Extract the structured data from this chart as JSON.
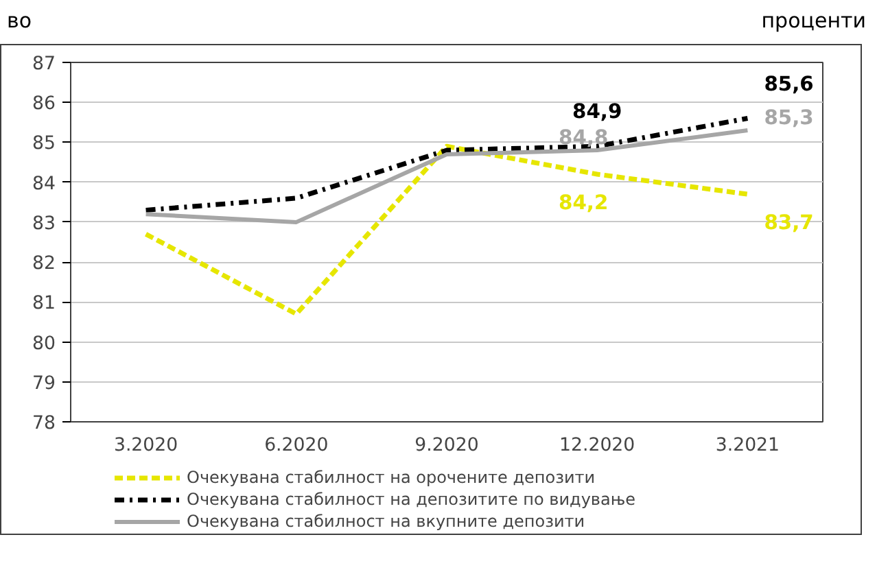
{
  "chart_data": {
    "type": "line",
    "annotations": [
      "во",
      "проценти"
    ],
    "categories": [
      "3.2020",
      "6.2020",
      "9.2020",
      "12.2020",
      "3.2021"
    ],
    "series": [
      {
        "name": "Очекувана стабилност на орочените депозити",
        "color": "#e6e600",
        "line_style": "dashed",
        "values": [
          82.7,
          80.7,
          84.9,
          84.2,
          83.7
        ],
        "value_labels": [
          null,
          null,
          null,
          "84,2",
          "83,7"
        ]
      },
      {
        "name": "Очекувана стабилност на депозитите по видување",
        "color": "#000000",
        "line_style": "dashdot",
        "values": [
          83.3,
          83.6,
          84.8,
          84.9,
          85.6
        ],
        "value_labels": [
          null,
          null,
          null,
          "84,9",
          "85,6"
        ]
      },
      {
        "name": "Очекувана стабилност на вкупните депозити",
        "color": "#a6a6a6",
        "line_style": "solid",
        "values": [
          83.2,
          83.0,
          84.7,
          84.8,
          85.3
        ],
        "value_labels": [
          null,
          null,
          null,
          "84,8",
          "85,3"
        ]
      }
    ],
    "ylim": [
      78,
      87
    ],
    "yticks": [
      78,
      79,
      80,
      81,
      82,
      83,
      84,
      85,
      86,
      87
    ],
    "grid": "y",
    "legend": "bottom",
    "marker": "none"
  }
}
